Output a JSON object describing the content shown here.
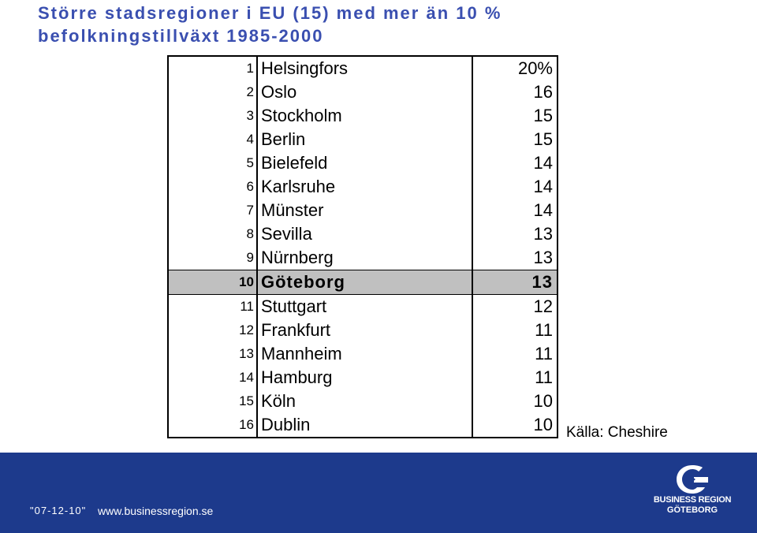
{
  "title": {
    "line1": "Större stadsregioner i EU (15) med mer än 10 %",
    "line2": "befolkningstillväxt 1985-2000"
  },
  "table": {
    "rows": [
      {
        "rank": "1",
        "city": "Helsingfors",
        "value": "20%",
        "highlight": false
      },
      {
        "rank": "2",
        "city": "Oslo",
        "value": "16",
        "highlight": false
      },
      {
        "rank": "3",
        "city": "Stockholm",
        "value": "15",
        "highlight": false
      },
      {
        "rank": "4",
        "city": "Berlin",
        "value": "15",
        "highlight": false
      },
      {
        "rank": "5",
        "city": "Bielefeld",
        "value": "14",
        "highlight": false
      },
      {
        "rank": "6",
        "city": "Karlsruhe",
        "value": "14",
        "highlight": false
      },
      {
        "rank": "7",
        "city": "Münster",
        "value": "14",
        "highlight": false
      },
      {
        "rank": "8",
        "city": "Sevilla",
        "value": "13",
        "highlight": false
      },
      {
        "rank": "9",
        "city": "Nürnberg",
        "value": "13",
        "highlight": false
      },
      {
        "rank": "10",
        "city": "Göteborg",
        "value": "13",
        "highlight": true
      },
      {
        "rank": "11",
        "city": "Stuttgart",
        "value": "12",
        "highlight": false
      },
      {
        "rank": "12",
        "city": "Frankfurt",
        "value": "11",
        "highlight": false
      },
      {
        "rank": "13",
        "city": "Mannheim",
        "value": "11",
        "highlight": false
      },
      {
        "rank": "14",
        "city": "Hamburg",
        "value": "11",
        "highlight": false
      },
      {
        "rank": "15",
        "city": "Köln",
        "value": "10",
        "highlight": false
      },
      {
        "rank": "16",
        "city": "Dublin",
        "value": "10",
        "highlight": false
      }
    ]
  },
  "source": "Källa: Cheshire",
  "footer": {
    "date": "\"07-12-10\"",
    "url": "www.businessregion.se",
    "logo_line1": "BUSINESS REGION",
    "logo_line2": "GÖTEBORG"
  },
  "colors": {
    "title": "#3a4fb0",
    "footer_band": "#1d3a8c",
    "highlight_row": "#c0c0c0"
  }
}
